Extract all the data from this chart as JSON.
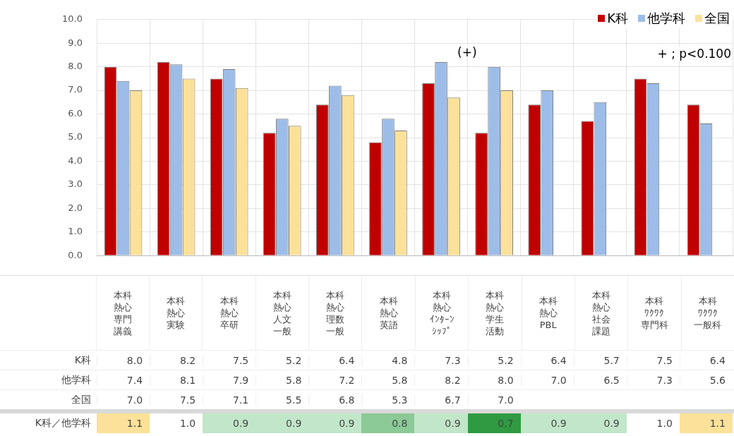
{
  "chart_data": [
    {
      "type": "bar",
      "categories": [
        "本科熱心専門講義",
        "本科熱心実験",
        "本科熱心卒研",
        "本科熱心人文一般",
        "本科熱心理数一般",
        "本科熱心英語",
        "本科熱心ｲﾝﾀｰﾝｼｯﾌﾟ",
        "本科熱心学生活動",
        "本科熱心PBL",
        "本科熱心社会課題",
        "本科ﾜｸﾜｸ専門科",
        "本科ﾜｸﾜｸ一般科"
      ],
      "series": [
        {
          "name": "K科",
          "color": "#c00000",
          "values": [
            8.0,
            8.2,
            7.5,
            5.2,
            6.4,
            4.8,
            7.3,
            5.2,
            6.4,
            5.7,
            7.5,
            6.4
          ],
          "value_labels": [
            "8.0",
            "8.2",
            "7.5",
            "5.2",
            "6.4",
            "4.8",
            "7.3",
            "5.2",
            "6.4",
            "5.7",
            "7.5",
            "6.4"
          ]
        },
        {
          "name": "他学科",
          "color": "#9dbde8",
          "values": [
            7.4,
            8.1,
            7.9,
            5.8,
            7.2,
            5.8,
            8.2,
            8.0,
            7.0,
            6.5,
            7.3,
            5.6
          ],
          "value_labels": [
            "7.4",
            "8.1",
            "7.9",
            "5.8",
            "7.2",
            "5.8",
            "8.2",
            "8.0",
            "7.0",
            "6.5",
            "7.3",
            "5.6"
          ]
        },
        {
          "name": "全国",
          "color": "#fbe199",
          "values": [
            7.0,
            7.5,
            7.1,
            5.5,
            6.8,
            5.3,
            6.7,
            7.0,
            null,
            null,
            null,
            null
          ],
          "value_labels": [
            "7.0",
            "7.5",
            "7.1",
            "5.5",
            "6.8",
            "5.3",
            "6.7",
            "7.0",
            null,
            null,
            null,
            null
          ]
        }
      ],
      "ylim": [
        0,
        10
      ],
      "yticks": [
        {
          "value": 0,
          "label": "0.0"
        },
        {
          "value": 1,
          "label": "1.0"
        },
        {
          "value": 2,
          "label": "2.0"
        },
        {
          "value": 3,
          "label": "3.0"
        },
        {
          "value": 4,
          "label": "4.0"
        },
        {
          "value": 5,
          "label": "5.0"
        },
        {
          "value": 6,
          "label": "6.0"
        },
        {
          "value": 7,
          "label": "7.0"
        },
        {
          "value": 8,
          "label": "8.0"
        },
        {
          "value": 9,
          "label": "9.0"
        },
        {
          "value": 10,
          "label": "10.0"
        }
      ],
      "grid": true,
      "legend": "top right",
      "annotations": [
        "(+)",
        "+ ; p<0.100"
      ]
    },
    {
      "type": "heatmap",
      "categories": [
        "本科熱心専門講義",
        "本科熱心実験",
        "本科熱心卒研",
        "本科熱心人文一般",
        "本科熱心理数一般",
        "本科熱心英語",
        "本科熱心ｲﾝﾀｰﾝｼｯﾌﾟ",
        "本科熱心学生活動",
        "本科熱心PBL",
        "本科熱心社会課題",
        "本科ﾜｸﾜｸ専門科",
        "本科ﾜｸﾜｸ一般科"
      ],
      "y_categories": [
        "K科／他学科"
      ],
      "cells": [
        [
          1.1,
          1.0,
          0.9,
          0.9,
          0.9,
          0.8,
          0.9,
          0.7,
          0.9,
          0.9,
          1.0,
          1.1
        ]
      ],
      "cell_labels": [
        [
          "1.1",
          "1.0",
          "0.9",
          "0.9",
          "0.9",
          "0.8",
          "0.9",
          "0.7",
          "0.9",
          "0.9",
          "1.0",
          "1.1"
        ]
      ],
      "tick_labels": "y"
    }
  ]
}
